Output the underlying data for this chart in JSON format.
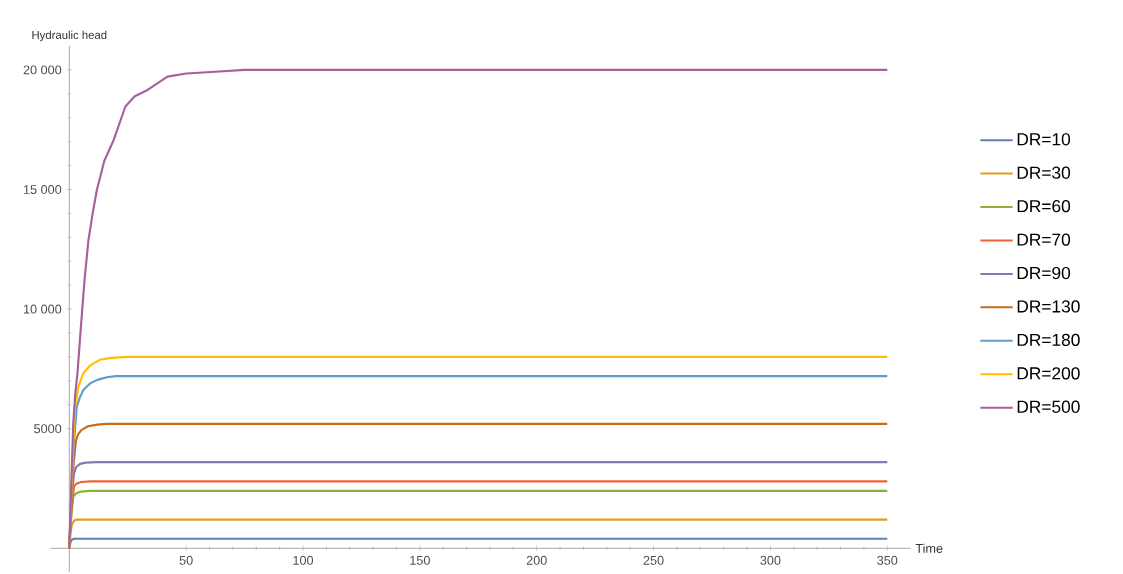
{
  "chart_data": {
    "type": "line",
    "xlabel": "Time",
    "ylabel": "Hydraulic head",
    "xlim": [
      -8,
      360
    ],
    "ylim": [
      -1000,
      21000
    ],
    "xticks": [
      50,
      100,
      150,
      200,
      250,
      300,
      350
    ],
    "yticks": [
      5000,
      {
        "value": 10000,
        "label": "10 000"
      },
      {
        "value": 15000,
        "label": "15 000"
      },
      {
        "value": 20000,
        "label": "20 000"
      }
    ],
    "grid": false,
    "legend": "right",
    "marker": "none",
    "line_style": "solid",
    "series": [
      {
        "name": "DR=10",
        "color": "#5e81b5",
        "x": [
          0,
          0.5,
          1,
          2,
          350
        ],
        "values": [
          0,
          250,
          350,
          400,
          400
        ]
      },
      {
        "name": "DR=30",
        "color": "#e19c24",
        "x": [
          0,
          0.5,
          1,
          2,
          3,
          350
        ],
        "values": [
          0,
          600,
          950,
          1150,
          1200,
          1200
        ]
      },
      {
        "name": "DR=60",
        "color": "#8fb032",
        "x": [
          0,
          0.5,
          1,
          1.7,
          3,
          5,
          9,
          350
        ],
        "values": [
          0,
          900,
          1500,
          2160,
          2300,
          2370,
          2400,
          2400
        ]
      },
      {
        "name": "DR=70",
        "color": "#eb6235",
        "x": [
          0,
          0.5,
          1,
          2,
          3,
          5,
          9,
          350
        ],
        "values": [
          0,
          1000,
          1700,
          2580,
          2700,
          2770,
          2800,
          2800
        ]
      },
      {
        "name": "DR=90",
        "color": "#8778b3",
        "x": [
          0,
          0.5,
          1,
          2,
          3,
          4.6,
          7,
          12,
          350
        ],
        "values": [
          0,
          1200,
          2100,
          3130,
          3400,
          3530,
          3580,
          3600,
          3600
        ]
      },
      {
        "name": "DR=130",
        "color": "#c56e1a",
        "x": [
          0,
          0.5,
          1,
          2,
          2.9,
          4,
          5.3,
          8,
          12,
          16,
          350
        ],
        "values": [
          0,
          1200,
          2300,
          3700,
          4530,
          4800,
          4950,
          5100,
          5170,
          5200,
          5200
        ]
      },
      {
        "name": "DR=180",
        "color": "#5d9ec7",
        "x": [
          0,
          0.5,
          1,
          2,
          3.2,
          4.5,
          6,
          9,
          12,
          16,
          20,
          350
        ],
        "values": [
          0,
          1300,
          2500,
          4400,
          5920,
          6300,
          6620,
          6900,
          7040,
          7150,
          7200,
          7200
        ]
      },
      {
        "name": "DR=200",
        "color": "#ffbf00",
        "x": [
          0,
          0.5,
          1,
          2,
          2.5,
          4,
          6,
          9,
          13,
          18,
          25,
          350
        ],
        "values": [
          0,
          1400,
          2700,
          5000,
          5920,
          6800,
          7320,
          7650,
          7880,
          7960,
          8000,
          8000
        ]
      },
      {
        "name": "DR=500",
        "color": "#a5609d",
        "x": [
          0,
          0.5,
          1,
          1.7,
          2.5,
          3.5,
          5,
          6.5,
          8.2,
          10,
          11.8,
          15,
          19,
          24,
          28,
          33.5,
          42,
          50,
          59,
          75,
          350
        ],
        "values": [
          0,
          1500,
          3140,
          5230,
          6400,
          7320,
          9300,
          11200,
          12890,
          14000,
          14980,
          16200,
          17070,
          18470,
          18900,
          19160,
          19720,
          19850,
          19900,
          20000,
          20000
        ]
      }
    ]
  }
}
